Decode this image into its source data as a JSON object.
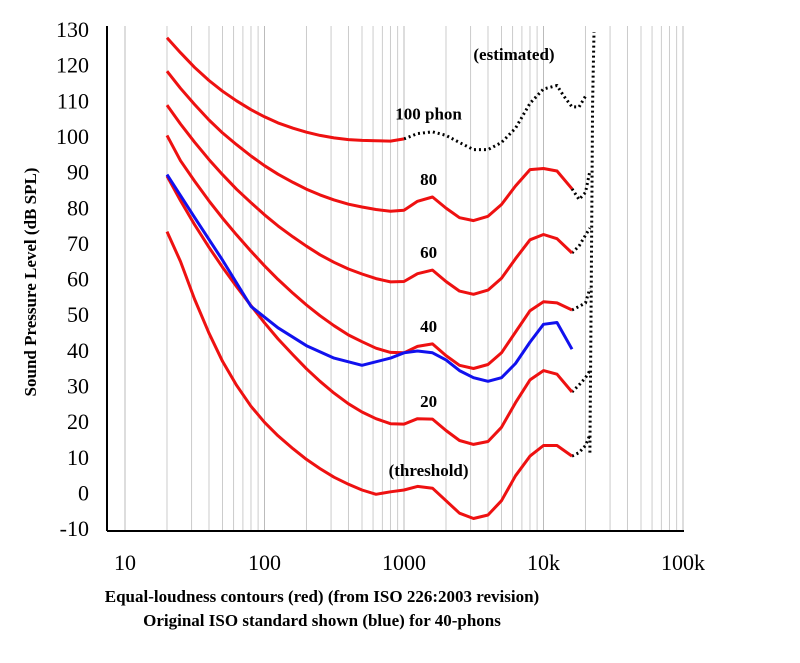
{
  "chart_data": {
    "type": "line",
    "y_label": "Sound Pressure Level (dB SPL)",
    "x_label_lines": [
      "Equal-loudness contours (red) (from ISO 226:2003 revision)",
      "Original ISO standard shown (blue) for 40-phons"
    ],
    "annotation": "(estimated)",
    "x_scale": "log",
    "xlim": [
      10,
      100000
    ],
    "ylim": [
      -10,
      130
    ],
    "xticks": [
      10,
      100,
      1000,
      {
        "value": 10000,
        "label": "10k"
      },
      {
        "value": 100000,
        "label": "100k"
      }
    ],
    "yticks": [
      -10,
      0,
      10,
      20,
      30,
      40,
      50,
      60,
      70,
      80,
      90,
      100,
      110,
      120,
      130
    ],
    "grid": "vertical-minor",
    "series": [
      {
        "name": "100 phon",
        "color": "#ee1111",
        "x": [
          20,
          25,
          31.5,
          40,
          50,
          63,
          80,
          100,
          125,
          160,
          200,
          250,
          315,
          400,
          500,
          630,
          800,
          1000
        ],
        "values": [
          128.4,
          124.2,
          120.1,
          116.4,
          113.4,
          110.7,
          108.2,
          106.2,
          104.5,
          103.0,
          101.9,
          101.0,
          100.3,
          99.8,
          99.6,
          99.5,
          99.4,
          100.0
        ],
        "estimated_x": [
          1000,
          1250,
          1600,
          2000,
          2500,
          3150,
          4000,
          5000,
          6300,
          8000,
          10000,
          12500,
          14000,
          16000,
          18000,
          20000
        ],
        "estimated_values": [
          100,
          101.5,
          102,
          101,
          99,
          97,
          97,
          99,
          103,
          110,
          114,
          115,
          112,
          109,
          109,
          112
        ]
      },
      {
        "name": "80",
        "color": "#ee1111",
        "x": [
          20,
          25,
          31.5,
          40,
          50,
          63,
          80,
          100,
          125,
          160,
          200,
          250,
          315,
          400,
          500,
          630,
          800,
          1000,
          1250,
          1600,
          2000,
          2500,
          3150,
          4000,
          5000,
          6300,
          8000,
          10000,
          12500,
          16000
        ],
        "values": [
          119.0,
          114.2,
          109.7,
          105.3,
          101.7,
          98.4,
          95.2,
          92.5,
          90.1,
          87.8,
          85.9,
          84.3,
          82.9,
          81.7,
          80.9,
          80.2,
          79.7,
          80.0,
          82.5,
          83.7,
          80.6,
          77.9,
          77.1,
          78.3,
          81.6,
          86.8,
          91.4,
          91.7,
          91.0,
          86.0
        ],
        "estimated_x": [
          16000,
          18000,
          20000,
          21500
        ],
        "estimated_values": [
          86,
          83,
          85,
          91
        ]
      },
      {
        "name": "60",
        "color": "#ee1111",
        "x": [
          20,
          25,
          31.5,
          40,
          50,
          63,
          80,
          100,
          125,
          160,
          200,
          250,
          315,
          400,
          500,
          630,
          800,
          1000,
          1250,
          1600,
          2000,
          2500,
          3150,
          4000,
          5000,
          6300,
          8000,
          10000,
          12500,
          16000
        ],
        "values": [
          109.5,
          104.2,
          99.1,
          94.2,
          90.0,
          85.9,
          82.1,
          78.7,
          75.6,
          72.5,
          69.9,
          67.5,
          65.4,
          63.5,
          62.1,
          60.8,
          59.9,
          60.0,
          62.2,
          63.2,
          60.0,
          57.3,
          56.4,
          57.6,
          60.9,
          66.4,
          71.7,
          73.2,
          72.0,
          68.0
        ],
        "estimated_x": [
          16000,
          18000,
          20000,
          21500
        ],
        "estimated_values": [
          68,
          70,
          73,
          75
        ]
      },
      {
        "name": "40",
        "color": "#ee1111",
        "x": [
          20,
          25,
          31.5,
          40,
          50,
          63,
          80,
          100,
          125,
          160,
          200,
          250,
          315,
          400,
          500,
          630,
          800,
          1000,
          1250,
          1600,
          2000,
          2500,
          3150,
          4000,
          5000,
          6300,
          8000,
          10000,
          12500,
          16000
        ],
        "values": [
          101.0,
          93.9,
          88.2,
          82.6,
          77.8,
          73.1,
          68.5,
          64.4,
          60.6,
          56.7,
          53.4,
          50.4,
          47.6,
          45.0,
          43.1,
          41.3,
          40.1,
          40.0,
          41.8,
          42.5,
          39.2,
          36.5,
          35.6,
          36.7,
          40.0,
          45.8,
          51.8,
          54.3,
          54.0,
          52.0
        ],
        "estimated_x": [
          16000,
          18000,
          20000,
          21500
        ],
        "estimated_values": [
          52,
          53,
          54,
          58
        ]
      },
      {
        "name": "20",
        "color": "#ee1111",
        "x": [
          20,
          25,
          31.5,
          40,
          50,
          63,
          80,
          100,
          125,
          160,
          200,
          250,
          315,
          400,
          500,
          630,
          800,
          1000,
          1250,
          1600,
          2000,
          2500,
          3150,
          4000,
          5000,
          6300,
          8000,
          10000,
          12500,
          16000
        ],
        "values": [
          89.6,
          82.7,
          76.0,
          69.6,
          64.0,
          58.6,
          53.2,
          48.4,
          43.9,
          39.4,
          35.5,
          32.0,
          28.7,
          25.7,
          23.4,
          21.5,
          20.1,
          20.0,
          21.5,
          21.4,
          18.2,
          15.4,
          14.3,
          15.1,
          19.1,
          26.0,
          32.4,
          35.0,
          34.0,
          29.0
        ],
        "estimated_x": [
          16000,
          18000,
          20000,
          21500
        ],
        "estimated_values": [
          29,
          31,
          33,
          35
        ]
      },
      {
        "name": "(threshold)",
        "color": "#ee1111",
        "x": [
          20,
          25,
          31.5,
          40,
          50,
          63,
          80,
          100,
          125,
          160,
          200,
          250,
          315,
          400,
          500,
          630,
          800,
          1000,
          1250,
          1600,
          2000,
          2500,
          3150,
          4000,
          5000,
          6300,
          8000,
          10000,
          12500,
          16000
        ],
        "values": [
          74.0,
          65.6,
          55.1,
          45.5,
          37.6,
          30.9,
          25.0,
          20.5,
          16.7,
          13.1,
          10.1,
          7.5,
          5.1,
          3.1,
          1.5,
          0.3,
          1.0,
          1.5,
          2.5,
          2.0,
          -1.5,
          -5.0,
          -6.5,
          -5.5,
          -1.5,
          5.5,
          11.0,
          14.0,
          14.0,
          11.0
        ],
        "estimated_x": [
          16000,
          18000,
          20000,
          21500
        ],
        "estimated_values": [
          11,
          12,
          14,
          17
        ]
      },
      {
        "color": "#1111ee",
        "x": [
          20,
          31.5,
          50,
          80,
          125,
          200,
          315,
          500,
          800,
          1000,
          1250,
          1600,
          2000,
          2500,
          3150,
          4000,
          5000,
          6300,
          8000,
          10000,
          12500,
          16000
        ],
        "values": [
          90,
          78,
          66,
          53,
          47,
          42,
          38.5,
          36.5,
          38.5,
          40,
          40.5,
          40,
          38,
          35,
          33,
          32,
          33,
          37,
          43,
          48,
          48.5,
          41
        ]
      },
      {
        "color": "#000000",
        "style": "dotted",
        "x": [
          21500,
          22000,
          22500,
          23000
        ],
        "values": [
          12,
          60,
          110,
          130
        ]
      }
    ]
  }
}
